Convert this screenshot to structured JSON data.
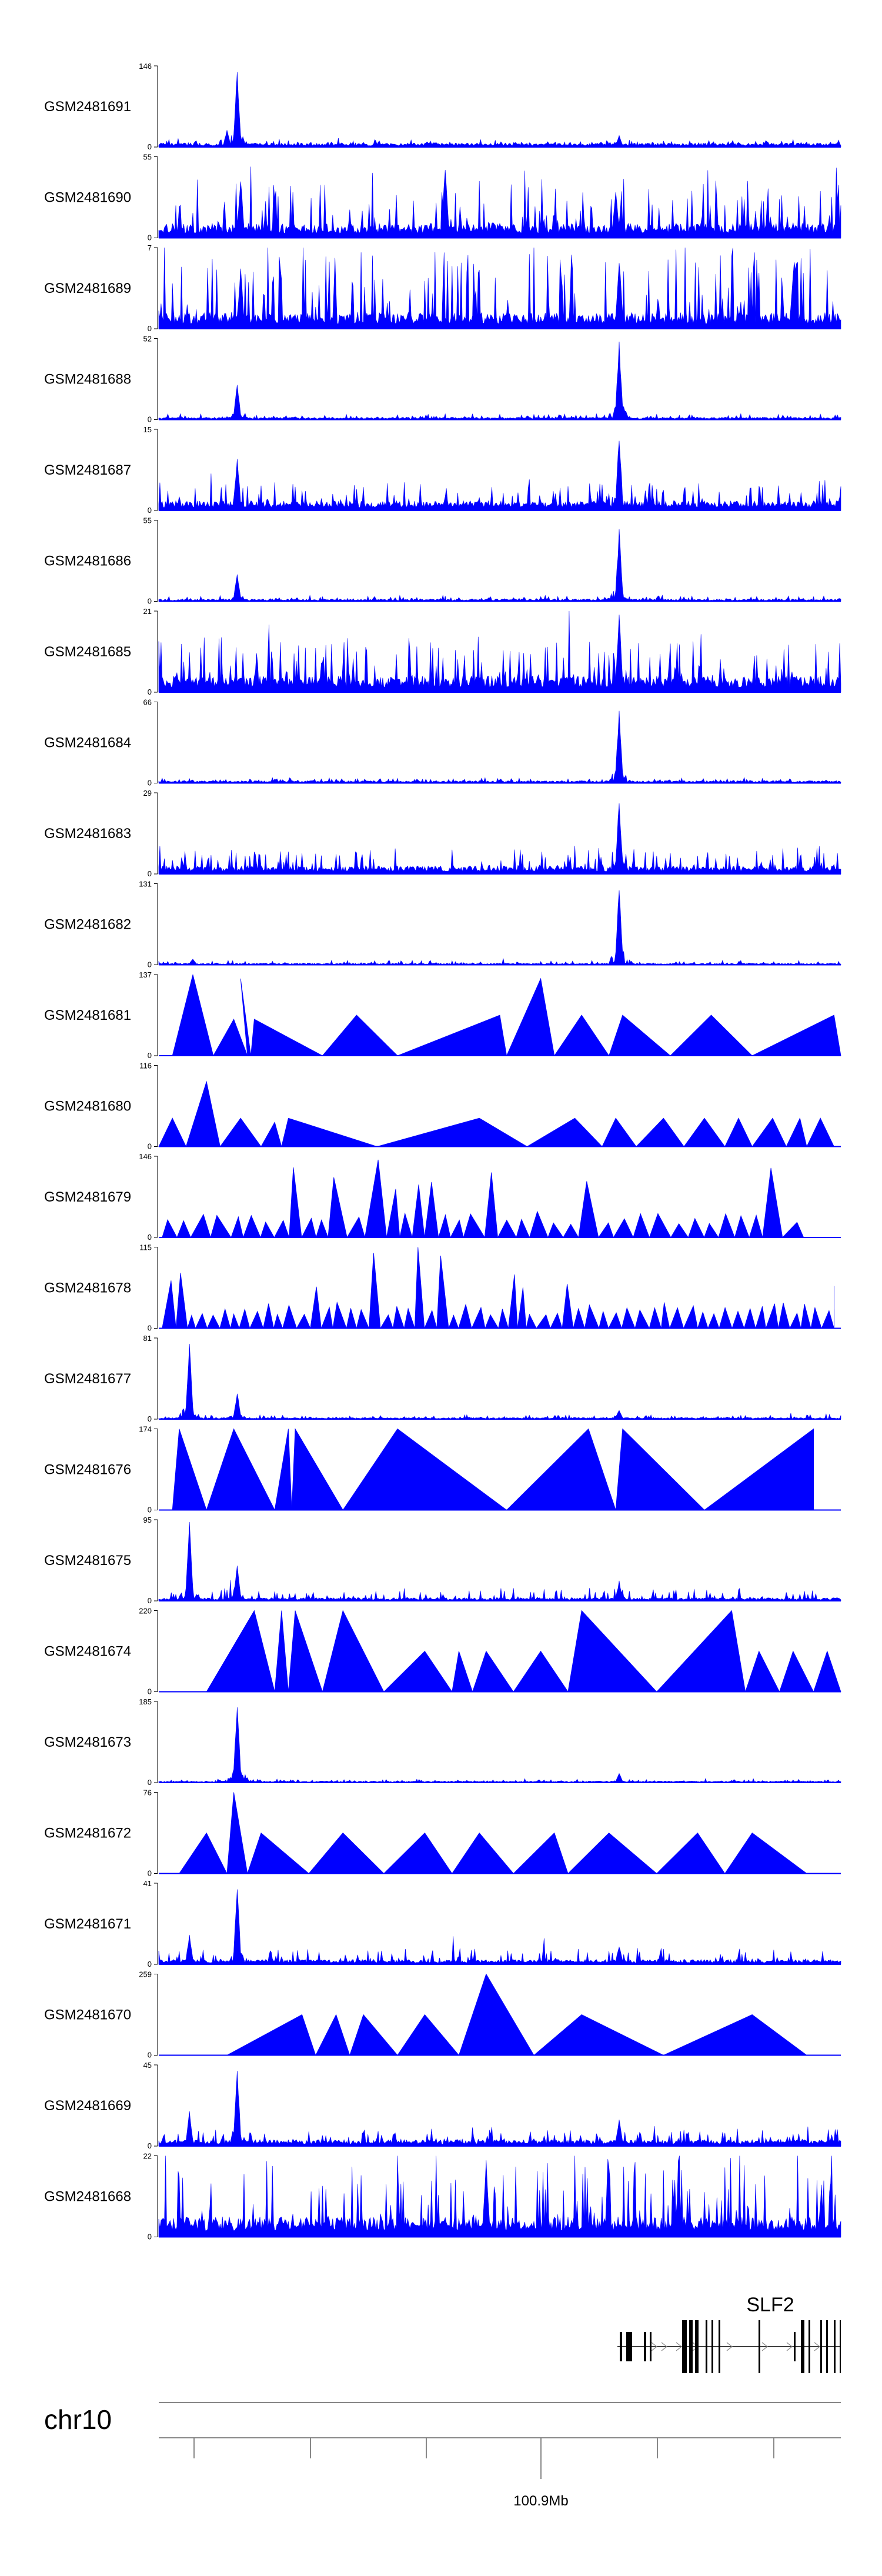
{
  "chart_data": {
    "type": "area",
    "track_color": "#0000ff",
    "chromosome": "chr10",
    "genomic_axis": {
      "labeled_tick": "100.9Mb"
    },
    "gene": {
      "name": "SLF2"
    },
    "tracks": [
      {
        "name": "GSM2481691",
        "ymax": "146",
        "ymin": "0",
        "style": "signal",
        "base": 0.05,
        "noise": 0.05,
        "peaks": [
          [
            0.1,
            0.22
          ],
          [
            0.115,
            1.0
          ],
          [
            0.675,
            0.15
          ]
        ]
      },
      {
        "name": "GSM2481690",
        "ymax": "55",
        "ymin": "0",
        "style": "signal",
        "base": 0.18,
        "noise": 0.6,
        "peaks": [
          [
            0.12,
            0.8
          ],
          [
            0.42,
            0.95
          ],
          [
            0.67,
            0.6
          ]
        ]
      },
      {
        "name": "GSM2481689",
        "ymax": "7",
        "ymin": "0",
        "style": "signal",
        "base": 0.2,
        "noise": 0.85,
        "peaks": [
          [
            0.12,
            0.8
          ],
          [
            0.675,
            0.95
          ],
          [
            0.93,
            0.7
          ]
        ]
      },
      {
        "name": "GSM2481688",
        "ymax": "52",
        "ymin": "0",
        "style": "signal",
        "base": 0.03,
        "noise": 0.05,
        "peaks": [
          [
            0.115,
            0.45
          ],
          [
            0.675,
            1.0
          ]
        ]
      },
      {
        "name": "GSM2481687",
        "ymax": "15",
        "ymin": "0",
        "style": "signal",
        "base": 0.12,
        "noise": 0.3,
        "peaks": [
          [
            0.115,
            0.7
          ],
          [
            0.675,
            1.0
          ]
        ]
      },
      {
        "name": "GSM2481686",
        "ymax": "55",
        "ymin": "0",
        "style": "signal",
        "base": 0.03,
        "noise": 0.05,
        "peaks": [
          [
            0.115,
            0.35
          ],
          [
            0.675,
            0.9
          ]
        ]
      },
      {
        "name": "GSM2481685",
        "ymax": "21",
        "ymin": "0",
        "style": "signal",
        "base": 0.2,
        "noise": 0.5,
        "peaks": [
          [
            0.675,
            1.0
          ]
        ]
      },
      {
        "name": "GSM2481684",
        "ymax": "66",
        "ymin": "0",
        "style": "signal",
        "base": 0.03,
        "noise": 0.04,
        "peaks": [
          [
            0.675,
            0.95
          ]
        ]
      },
      {
        "name": "GSM2481683",
        "ymax": "29",
        "ymin": "0",
        "style": "signal",
        "base": 0.1,
        "noise": 0.25,
        "peaks": [
          [
            0.675,
            0.95
          ]
        ]
      },
      {
        "name": "GSM2481682",
        "ymax": "131",
        "ymin": "0",
        "style": "signal",
        "base": 0.02,
        "noise": 0.04,
        "peaks": [
          [
            0.05,
            0.08
          ],
          [
            0.675,
            1.0
          ]
        ]
      },
      {
        "name": "GSM2481681",
        "ymax": "137",
        "ymin": "0",
        "style": "tri",
        "tris": [
          [
            0.02,
            0.05,
            0.08,
            1.0
          ],
          [
            0.08,
            0.11,
            0.13,
            0.45
          ],
          [
            0.13,
            0.12,
            0.135,
            0.95
          ],
          [
            0.135,
            0.14,
            0.24,
            0.45
          ],
          [
            0.24,
            0.29,
            0.35,
            0.5
          ],
          [
            0.35,
            0.5,
            0.51,
            0.5
          ],
          [
            0.51,
            0.56,
            0.58,
            0.95
          ],
          [
            0.58,
            0.62,
            0.66,
            0.5
          ],
          [
            0.66,
            0.68,
            0.75,
            0.5
          ],
          [
            0.75,
            0.81,
            0.87,
            0.5
          ],
          [
            0.87,
            0.99,
            1.0,
            0.5
          ]
        ]
      },
      {
        "name": "GSM2481680",
        "ymax": "116",
        "ymin": "0",
        "style": "tri",
        "tris": [
          [
            0.0,
            0.02,
            0.04,
            0.35
          ],
          [
            0.04,
            0.07,
            0.09,
            0.8
          ],
          [
            0.09,
            0.12,
            0.15,
            0.35
          ],
          [
            0.15,
            0.17,
            0.18,
            0.3
          ],
          [
            0.18,
            0.19,
            0.32,
            0.35
          ],
          [
            0.32,
            0.47,
            0.54,
            0.35
          ],
          [
            0.54,
            0.61,
            0.65,
            0.35
          ],
          [
            0.65,
            0.67,
            0.7,
            0.35
          ],
          [
            0.7,
            0.74,
            0.77,
            0.35
          ],
          [
            0.77,
            0.8,
            0.83,
            0.35
          ],
          [
            0.83,
            0.85,
            0.87,
            0.35
          ],
          [
            0.87,
            0.9,
            0.92,
            0.35
          ],
          [
            0.92,
            0.94,
            0.95,
            0.35
          ],
          [
            0.95,
            0.97,
            0.99,
            0.35
          ]
        ]
      },
      {
        "name": "GSM2481679",
        "ymax": "146",
        "ymin": "0",
        "style": "dense-tri",
        "count": 40,
        "max": 1.0,
        "base": 0.2
      },
      {
        "name": "GSM2481678",
        "ymax": "115",
        "ymin": "0",
        "style": "dense-tri",
        "count": 60,
        "max": 1.0,
        "base": 0.2
      },
      {
        "name": "GSM2481677",
        "ymax": "81",
        "ymin": "0",
        "style": "signal",
        "base": 0.02,
        "noise": 0.04,
        "peaks": [
          [
            0.045,
            1.0
          ],
          [
            0.115,
            0.35
          ],
          [
            0.675,
            0.12
          ]
        ]
      },
      {
        "name": "GSM2481676",
        "ymax": "174",
        "ymin": "0",
        "style": "tri",
        "tris": [
          [
            0.02,
            0.03,
            0.07,
            1.0
          ],
          [
            0.07,
            0.11,
            0.17,
            1.0
          ],
          [
            0.17,
            0.19,
            0.195,
            1.0
          ],
          [
            0.195,
            0.2,
            0.27,
            1.0
          ],
          [
            0.27,
            0.35,
            0.51,
            1.0
          ],
          [
            0.51,
            0.63,
            0.67,
            1.0
          ],
          [
            0.67,
            0.68,
            0.8,
            1.0
          ],
          [
            0.8,
            0.96,
            0.96,
            1.0
          ]
        ]
      },
      {
        "name": "GSM2481675",
        "ymax": "95",
        "ymin": "0",
        "style": "signal",
        "base": 0.04,
        "noise": 0.12,
        "peaks": [
          [
            0.045,
            1.0
          ],
          [
            0.115,
            0.45
          ],
          [
            0.675,
            0.25
          ]
        ]
      },
      {
        "name": "GSM2481674",
        "ymax": "220",
        "ymin": "0",
        "style": "tri",
        "tris": [
          [
            0.07,
            0.14,
            0.17,
            1.0
          ],
          [
            0.17,
            0.18,
            0.19,
            1.0
          ],
          [
            0.19,
            0.2,
            0.24,
            1.0
          ],
          [
            0.24,
            0.27,
            0.33,
            1.0
          ],
          [
            0.33,
            0.39,
            0.43,
            0.5
          ],
          [
            0.43,
            0.44,
            0.46,
            0.5
          ],
          [
            0.46,
            0.48,
            0.52,
            0.5
          ],
          [
            0.52,
            0.56,
            0.6,
            0.5
          ],
          [
            0.6,
            0.62,
            0.73,
            1.0
          ],
          [
            0.73,
            0.84,
            0.86,
            1.0
          ],
          [
            0.86,
            0.88,
            0.91,
            0.5
          ],
          [
            0.91,
            0.93,
            0.96,
            0.5
          ],
          [
            0.96,
            0.98,
            1.0,
            0.5
          ]
        ]
      },
      {
        "name": "GSM2481673",
        "ymax": "185",
        "ymin": "0",
        "style": "signal",
        "base": 0.02,
        "noise": 0.03,
        "peaks": [
          [
            0.115,
            1.0
          ],
          [
            0.675,
            0.12
          ]
        ]
      },
      {
        "name": "GSM2481672",
        "ymax": "76",
        "ymin": "0",
        "style": "tri",
        "tris": [
          [
            0.03,
            0.07,
            0.1,
            0.5
          ],
          [
            0.1,
            0.11,
            0.13,
            1.0
          ],
          [
            0.13,
            0.15,
            0.22,
            0.5
          ],
          [
            0.22,
            0.27,
            0.33,
            0.5
          ],
          [
            0.33,
            0.39,
            0.43,
            0.5
          ],
          [
            0.43,
            0.47,
            0.52,
            0.5
          ],
          [
            0.52,
            0.58,
            0.6,
            0.5
          ],
          [
            0.6,
            0.66,
            0.73,
            0.5
          ],
          [
            0.73,
            0.79,
            0.83,
            0.5
          ],
          [
            0.83,
            0.87,
            0.95,
            0.5
          ]
        ]
      },
      {
        "name": "GSM2481671",
        "ymax": "41",
        "ymin": "0",
        "style": "signal",
        "base": 0.06,
        "noise": 0.15,
        "peaks": [
          [
            0.115,
            1.0
          ],
          [
            0.045,
            0.4
          ],
          [
            0.675,
            0.25
          ]
        ]
      },
      {
        "name": "GSM2481670",
        "ymax": "259",
        "ymin": "0",
        "style": "tri",
        "tris": [
          [
            0.1,
            0.21,
            0.23,
            0.5
          ],
          [
            0.23,
            0.26,
            0.28,
            0.5
          ],
          [
            0.28,
            0.3,
            0.35,
            0.5
          ],
          [
            0.35,
            0.39,
            0.44,
            0.5
          ],
          [
            0.44,
            0.48,
            0.55,
            1.0
          ],
          [
            0.55,
            0.62,
            0.74,
            0.5
          ],
          [
            0.74,
            0.87,
            0.95,
            0.5
          ]
        ]
      },
      {
        "name": "GSM2481669",
        "ymax": "45",
        "ymin": "0",
        "style": "signal",
        "base": 0.08,
        "noise": 0.15,
        "peaks": [
          [
            0.045,
            0.45
          ],
          [
            0.115,
            1.0
          ],
          [
            0.675,
            0.35
          ]
        ]
      },
      {
        "name": "GSM2481668",
        "ymax": "22",
        "ymin": "0",
        "style": "signal",
        "base": 0.25,
        "noise": 0.8,
        "peaks": [
          [
            0.48,
            1.0
          ]
        ]
      }
    ]
  }
}
